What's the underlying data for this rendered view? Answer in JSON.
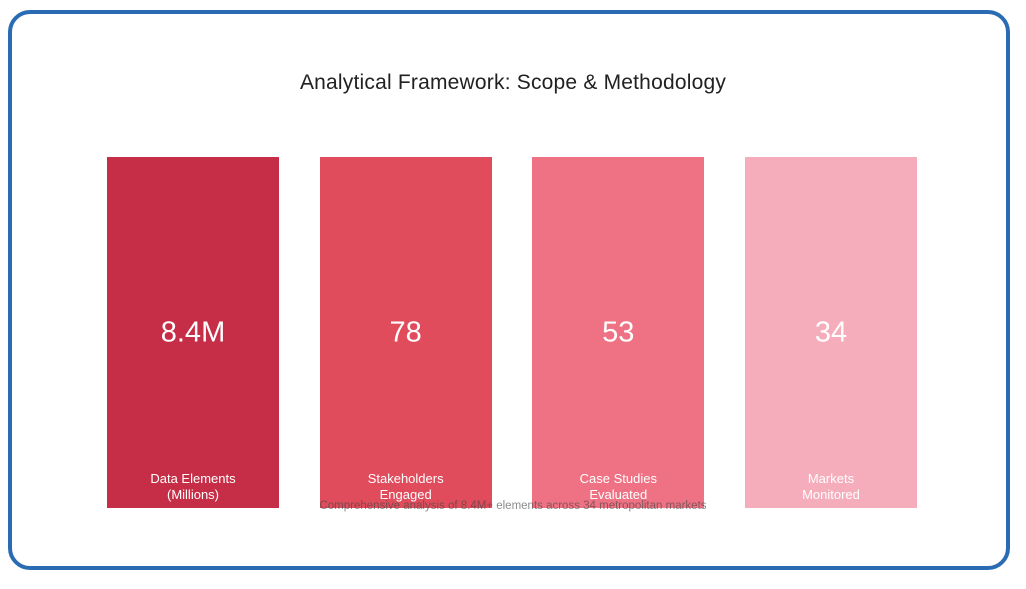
{
  "frame": {
    "border_color": "#2A6CB3",
    "background_color": "#ffffff"
  },
  "title": "Analytical Framework: Scope & Methodology",
  "caption": "Comprehensive analysis of 8.4M+ elements across 34 metropolitan markets",
  "cards": [
    {
      "value": "8.4M",
      "label_line1": "Data Elements",
      "label_line2": "(Millions)",
      "color": "#C62E47"
    },
    {
      "value": "78",
      "label_line1": "Stakeholders",
      "label_line2": "Engaged",
      "color": "#E04C5C"
    },
    {
      "value": "53",
      "label_line1": "Case Studies",
      "label_line2": "Evaluated",
      "color": "#EE7283"
    },
    {
      "value": "34",
      "label_line1": "Markets",
      "label_line2": "Monitored",
      "color": "#F6ADBB"
    }
  ],
  "chart_data": {
    "type": "bar",
    "title": "Analytical Framework: Scope & Methodology",
    "categories": [
      "Data Elements (Millions)",
      "Stakeholders Engaged",
      "Case Studies Evaluated",
      "Markets Monitored"
    ],
    "values": [
      8400000,
      78,
      53,
      34
    ],
    "value_labels": [
      "8.4M",
      "78",
      "53",
      "34"
    ],
    "bar_colors": [
      "#C62E47",
      "#E04C5C",
      "#EE7283",
      "#F6ADBB"
    ],
    "annotations": [
      "Comprehensive analysis of 8.4M+ elements across 34 metropolitan markets"
    ],
    "xlabel": "",
    "ylabel": "",
    "legend": "none",
    "grid": false,
    "layout": "equal-height stat cards, value centered in card, category label at card bottom"
  }
}
